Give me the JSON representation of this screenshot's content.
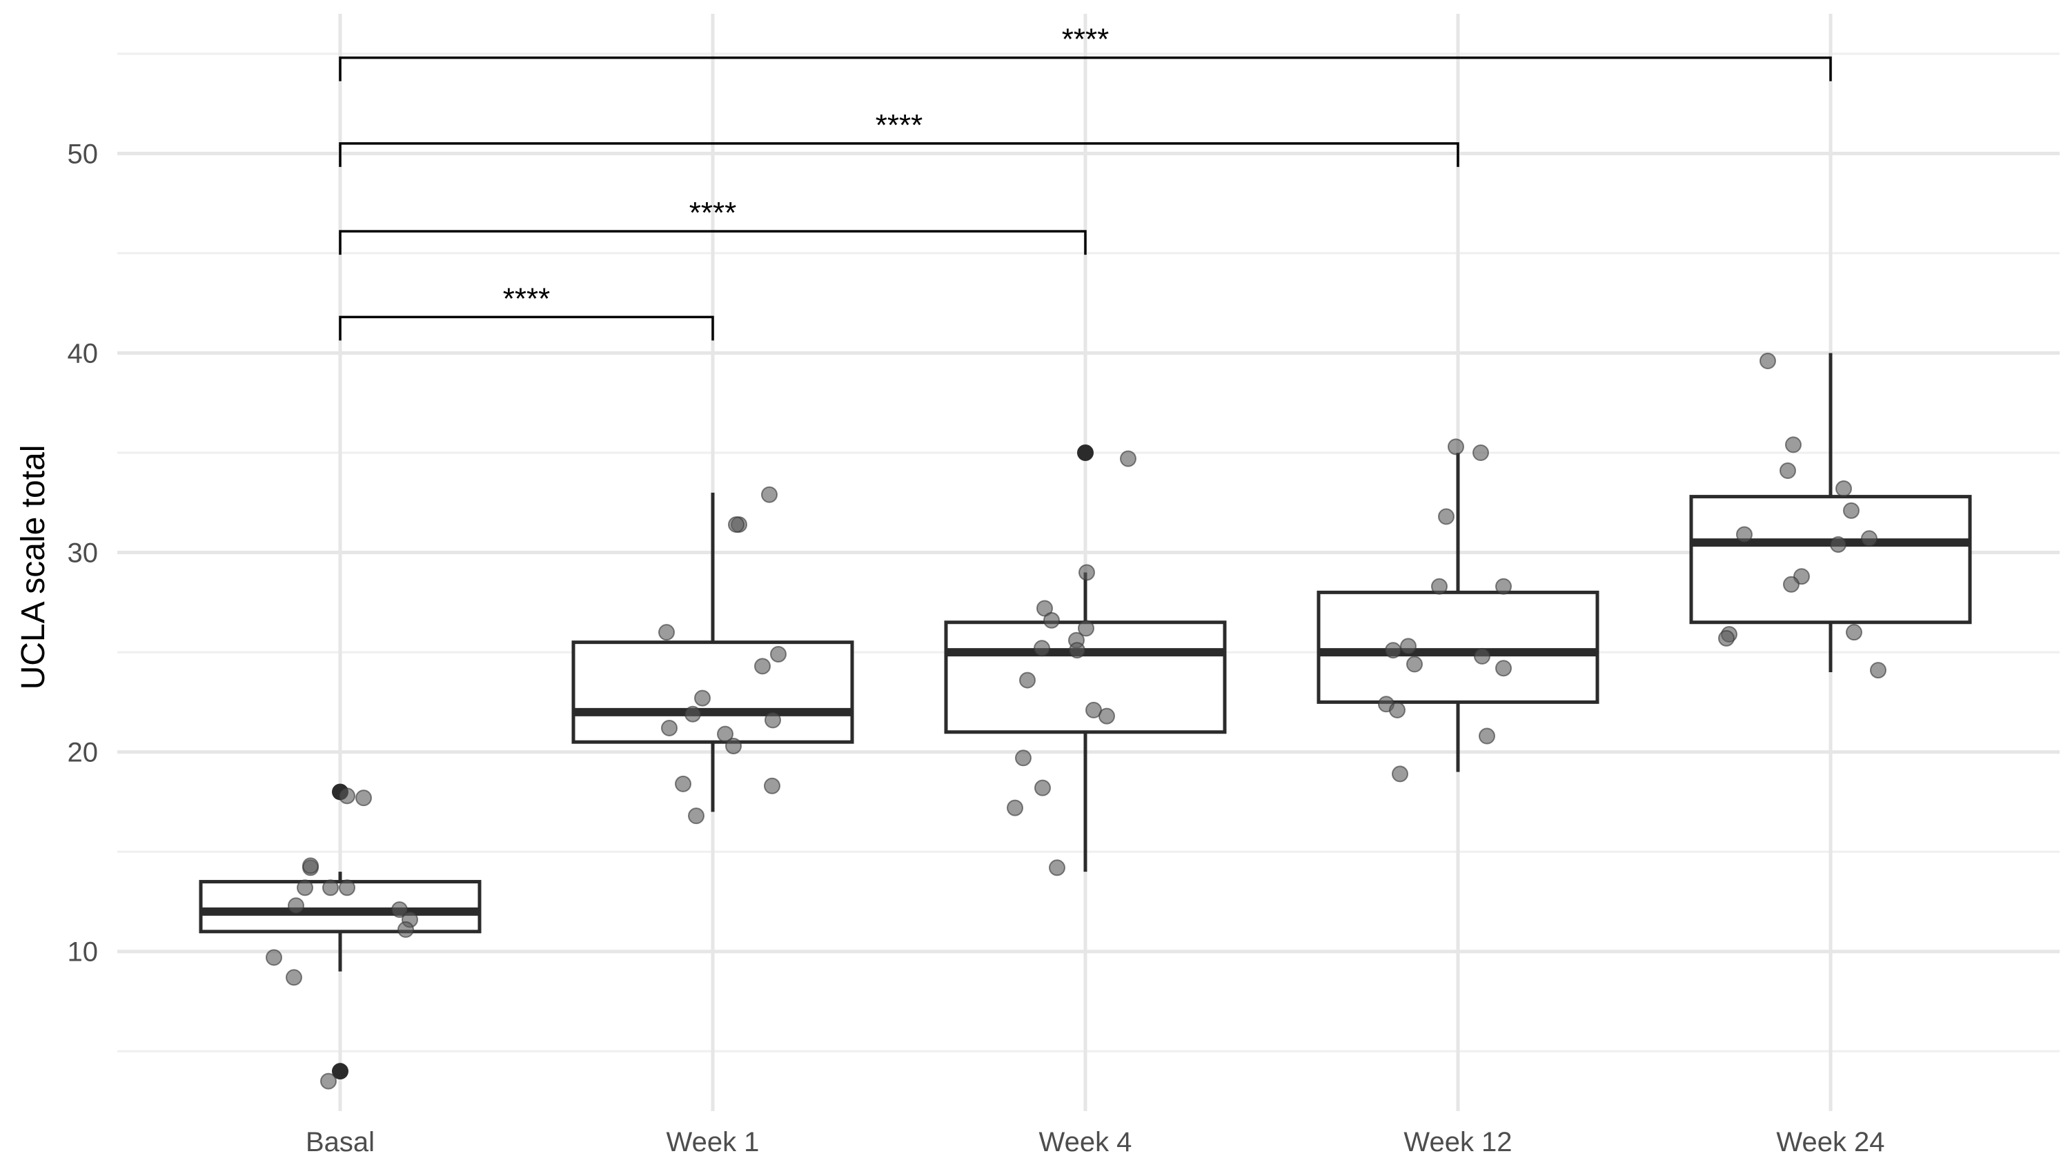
{
  "chart_data": {
    "type": "box",
    "ylabel": "UCLA scale total",
    "xlabel": "",
    "ylim": [
      2,
      57
    ],
    "y_ticks": [
      10,
      20,
      30,
      40,
      50
    ],
    "y_minor_ticks": [
      5,
      15,
      25,
      35,
      45,
      55
    ],
    "grid": true,
    "categories": [
      "Basal",
      "Week 1",
      "Week 4",
      "Week 12",
      "Week 24"
    ],
    "boxes": [
      {
        "category": "Basal",
        "q1": 11,
        "median": 12,
        "q3": 13.5,
        "whisker_low": 9,
        "whisker_high": 14,
        "outliers": [
          18,
          4
        ]
      },
      {
        "category": "Week 1",
        "q1": 20.5,
        "median": 22,
        "q3": 25.5,
        "whisker_low": 17,
        "whisker_high": 33,
        "outliers": []
      },
      {
        "category": "Week 4",
        "q1": 21,
        "median": 25,
        "q3": 26.5,
        "whisker_low": 14,
        "whisker_high": 29,
        "outliers": [
          35
        ]
      },
      {
        "category": "Week 12",
        "q1": 22.5,
        "median": 25,
        "q3": 28,
        "whisker_low": 19,
        "whisker_high": 35,
        "outliers": []
      },
      {
        "category": "Week 24",
        "q1": 26.5,
        "median": 30.5,
        "q3": 32.8,
        "whisker_low": 24,
        "whisker_high": 40,
        "outliers": []
      }
    ],
    "points": [
      {
        "category": "Basal",
        "values": [
          17.8,
          17.7,
          14.2,
          14.3,
          13.2,
          13.2,
          13.2,
          12.3,
          12.1,
          11.6,
          11.1,
          9.7,
          8.7,
          3.5
        ]
      },
      {
        "category": "Week 1",
        "values": [
          32.9,
          31.4,
          31.4,
          26.0,
          24.9,
          24.3,
          22.7,
          21.9,
          21.6,
          21.2,
          20.9,
          20.3,
          18.4,
          18.3,
          16.8
        ]
      },
      {
        "category": "Week 4",
        "values": [
          34.7,
          29.0,
          27.2,
          26.6,
          26.2,
          25.6,
          25.2,
          25.1,
          23.6,
          22.1,
          21.8,
          19.7,
          18.2,
          17.2,
          14.2
        ]
      },
      {
        "category": "Week 12",
        "values": [
          35.3,
          35.0,
          31.8,
          28.3,
          28.3,
          25.3,
          25.1,
          24.8,
          24.4,
          24.2,
          22.4,
          22.1,
          20.8,
          18.9
        ]
      },
      {
        "category": "Week 24",
        "values": [
          39.6,
          35.4,
          34.1,
          33.2,
          32.1,
          30.9,
          30.7,
          30.4,
          28.8,
          28.4,
          26.0,
          25.9,
          25.7,
          24.1
        ]
      }
    ],
    "comparisons": [
      {
        "group1": "Basal",
        "group2": "Week 1",
        "y": 41.8,
        "label": "****"
      },
      {
        "group1": "Basal",
        "group2": "Week 4",
        "y": 46.1,
        "label": "****"
      },
      {
        "group1": "Basal",
        "group2": "Week 12",
        "y": 50.5,
        "label": "****"
      },
      {
        "group1": "Basal",
        "group2": "Week 24",
        "y": 54.8,
        "label": "****"
      }
    ],
    "colors": {
      "box_line": "#2b2b2b",
      "points": "#5a5a5a",
      "grid": "#e6e6e6",
      "bracket": "#000000"
    }
  }
}
